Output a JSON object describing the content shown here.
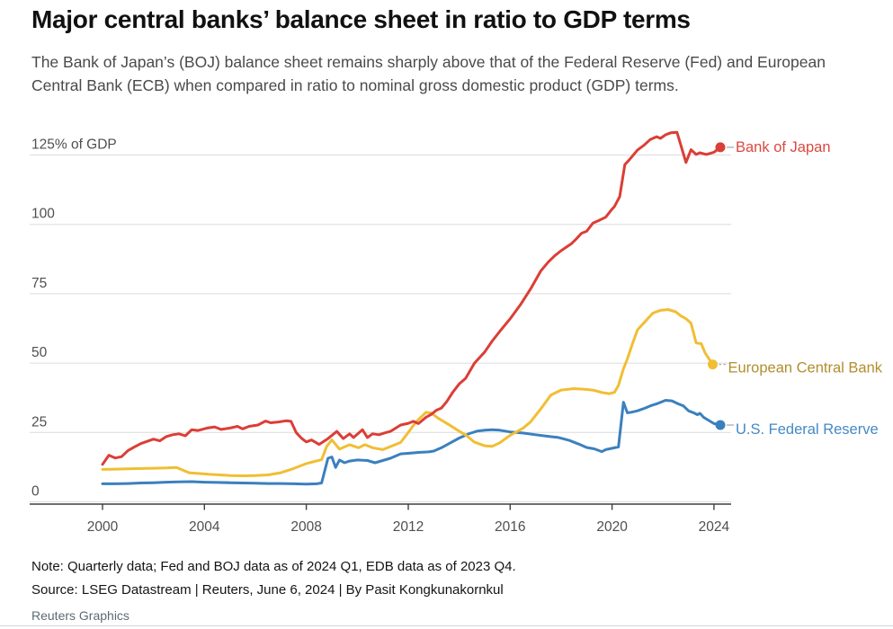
{
  "chart_data": {
    "type": "line",
    "title": "Major central banks’ balance sheet in ratio to GDP terms",
    "subtitle": "The Bank of Japan’s (BOJ) balance sheet remains sharply above that of the Federal Reserve (Fed) and European Central Bank (ECB) when compared in ratio to nominal gross domestic product (GDP) terms.",
    "unit": "% of GDP",
    "grid": true,
    "legend_position": "right-of-line-ends",
    "ylim": [
      0,
      138
    ],
    "x_range": [
      1999.6,
      2024.8
    ],
    "y_ticks": [
      0,
      25,
      50,
      75,
      100,
      125
    ],
    "y_tick_labels": [
      "0",
      "25",
      "50",
      "75",
      "100",
      "125% of GDP"
    ],
    "x_ticks": [
      2000,
      2004,
      2008,
      2012,
      2016,
      2020,
      2024
    ],
    "series": [
      {
        "name": "U.S. Federal Reserve",
        "color": "#3B80BE",
        "label_color": "#4489C5",
        "points": [
          [
            2000,
            6.5
          ],
          [
            2000.5,
            6.5
          ],
          [
            2001,
            6.6
          ],
          [
            2001.5,
            6.8
          ],
          [
            2002,
            6.9
          ],
          [
            2002.5,
            7.1
          ],
          [
            2003,
            7.2
          ],
          [
            2003.5,
            7.3
          ],
          [
            2004,
            7.1
          ],
          [
            2004.5,
            7.0
          ],
          [
            2005,
            6.9
          ],
          [
            2005.5,
            6.8
          ],
          [
            2006,
            6.7
          ],
          [
            2006.5,
            6.6
          ],
          [
            2007,
            6.6
          ],
          [
            2007.5,
            6.5
          ],
          [
            2008,
            6.4
          ],
          [
            2008.4,
            6.5
          ],
          [
            2008.6,
            6.8
          ],
          [
            2008.85,
            15.7
          ],
          [
            2009,
            16.2
          ],
          [
            2009.15,
            12.4
          ],
          [
            2009.3,
            15.1
          ],
          [
            2009.5,
            14.1
          ],
          [
            2009.7,
            14.7
          ],
          [
            2010,
            15.1
          ],
          [
            2010.4,
            14.9
          ],
          [
            2010.7,
            14.1
          ],
          [
            2011,
            14.9
          ],
          [
            2011.3,
            15.7
          ],
          [
            2011.7,
            17.3
          ],
          [
            2012.1,
            17.6
          ],
          [
            2012.4,
            17.8
          ],
          [
            2012.8,
            18.0
          ],
          [
            2013,
            18.3
          ],
          [
            2013.3,
            19.5
          ],
          [
            2013.6,
            21.0
          ],
          [
            2014,
            23.0
          ],
          [
            2014.4,
            24.6
          ],
          [
            2014.7,
            25.5
          ],
          [
            2015,
            25.8
          ],
          [
            2015.3,
            26.0
          ],
          [
            2015.6,
            25.8
          ],
          [
            2016,
            25.2
          ],
          [
            2016.5,
            24.8
          ],
          [
            2017,
            24.2
          ],
          [
            2017.5,
            23.6
          ],
          [
            2017.9,
            23.2
          ],
          [
            2018.3,
            22.2
          ],
          [
            2018.7,
            20.8
          ],
          [
            2019,
            19.6
          ],
          [
            2019.3,
            19.1
          ],
          [
            2019.6,
            18.1
          ],
          [
            2019.75,
            18.8
          ],
          [
            2020,
            19.3
          ],
          [
            2020.25,
            19.8
          ],
          [
            2020.45,
            35.9
          ],
          [
            2020.6,
            32.1
          ],
          [
            2020.75,
            32.3
          ],
          [
            2021,
            32.8
          ],
          [
            2021.3,
            33.8
          ],
          [
            2021.5,
            34.6
          ],
          [
            2021.8,
            35.5
          ],
          [
            2022.1,
            36.6
          ],
          [
            2022.35,
            36.4
          ],
          [
            2022.6,
            35.3
          ],
          [
            2022.8,
            34.6
          ],
          [
            2023,
            32.8
          ],
          [
            2023.2,
            32.1
          ],
          [
            2023.35,
            31.4
          ],
          [
            2023.45,
            31.9
          ],
          [
            2023.6,
            30.4
          ],
          [
            2023.8,
            29.3
          ],
          [
            2024,
            28.2
          ],
          [
            2024.25,
            27.7
          ]
        ]
      },
      {
        "name": "European Central Bank",
        "color": "#F1BE33",
        "label_color": "#B28E2D",
        "points": [
          [
            2000,
            11.7
          ],
          [
            2000.5,
            11.8
          ],
          [
            2001,
            11.9
          ],
          [
            2001.5,
            12.0
          ],
          [
            2002,
            12.1
          ],
          [
            2002.5,
            12.2
          ],
          [
            2002.9,
            12.4
          ],
          [
            2003.4,
            10.5
          ],
          [
            2003.8,
            10.2
          ],
          [
            2004.2,
            9.9
          ],
          [
            2004.6,
            9.7
          ],
          [
            2005,
            9.5
          ],
          [
            2005.5,
            9.4
          ],
          [
            2006,
            9.5
          ],
          [
            2006.5,
            9.7
          ],
          [
            2007,
            10.5
          ],
          [
            2007.5,
            12.0
          ],
          [
            2008,
            13.8
          ],
          [
            2008.3,
            14.5
          ],
          [
            2008.6,
            15.2
          ],
          [
            2008.8,
            20.0
          ],
          [
            2009,
            22.3
          ],
          [
            2009.3,
            19.0
          ],
          [
            2009.7,
            20.6
          ],
          [
            2010.05,
            19.5
          ],
          [
            2010.3,
            20.6
          ],
          [
            2010.6,
            19.5
          ],
          [
            2011,
            18.8
          ],
          [
            2011.3,
            19.9
          ],
          [
            2011.7,
            21.4
          ],
          [
            2012,
            25.0
          ],
          [
            2012.3,
            28.8
          ],
          [
            2012.7,
            32.3
          ],
          [
            2012.9,
            32.0
          ],
          [
            2013.2,
            30.0
          ],
          [
            2013.6,
            27.8
          ],
          [
            2014,
            25.5
          ],
          [
            2014.3,
            23.8
          ],
          [
            2014.6,
            21.5
          ],
          [
            2015,
            20.2
          ],
          [
            2015.3,
            20.0
          ],
          [
            2015.6,
            21.3
          ],
          [
            2016,
            24.0
          ],
          [
            2016.5,
            26.5
          ],
          [
            2016.8,
            28.8
          ],
          [
            2017.2,
            33.5
          ],
          [
            2017.6,
            38.5
          ],
          [
            2018,
            40.3
          ],
          [
            2018.5,
            40.8
          ],
          [
            2019,
            40.5
          ],
          [
            2019.3,
            40.2
          ],
          [
            2019.6,
            39.4
          ],
          [
            2019.9,
            39.0
          ],
          [
            2020.1,
            39.5
          ],
          [
            2020.25,
            42.0
          ],
          [
            2020.45,
            48.0
          ],
          [
            2020.6,
            51.5
          ],
          [
            2020.8,
            57.0
          ],
          [
            2021,
            62.0
          ],
          [
            2021.3,
            65.0
          ],
          [
            2021.6,
            68.0
          ],
          [
            2021.9,
            69.0
          ],
          [
            2022.2,
            69.3
          ],
          [
            2022.5,
            68.5
          ],
          [
            2022.7,
            67.0
          ],
          [
            2022.9,
            66.0
          ],
          [
            2023.1,
            64.4
          ],
          [
            2023.3,
            57.3
          ],
          [
            2023.5,
            57.0
          ],
          [
            2023.65,
            53.7
          ],
          [
            2023.95,
            49.5
          ]
        ]
      },
      {
        "name": "Bank of Japan",
        "color": "#DB3E36",
        "label_color": "#DC4841",
        "points": [
          [
            2000,
            13.5
          ],
          [
            2000.25,
            16.8
          ],
          [
            2000.5,
            15.8
          ],
          [
            2000.75,
            16.3
          ],
          [
            2001,
            18.5
          ],
          [
            2001.25,
            19.8
          ],
          [
            2001.5,
            21.0
          ],
          [
            2001.75,
            21.8
          ],
          [
            2002,
            22.6
          ],
          [
            2002.25,
            22.0
          ],
          [
            2002.5,
            23.5
          ],
          [
            2002.75,
            24.2
          ],
          [
            2003,
            24.5
          ],
          [
            2003.25,
            23.8
          ],
          [
            2003.5,
            26.0
          ],
          [
            2003.75,
            25.7
          ],
          [
            2004.1,
            26.6
          ],
          [
            2004.4,
            27.0
          ],
          [
            2004.65,
            26.1
          ],
          [
            2005,
            26.6
          ],
          [
            2005.3,
            27.2
          ],
          [
            2005.5,
            26.3
          ],
          [
            2005.75,
            27.2
          ],
          [
            2006.1,
            27.7
          ],
          [
            2006.4,
            29.1
          ],
          [
            2006.6,
            28.5
          ],
          [
            2006.9,
            28.8
          ],
          [
            2007.2,
            29.2
          ],
          [
            2007.4,
            29.0
          ],
          [
            2007.6,
            25.0
          ],
          [
            2007.8,
            23.0
          ],
          [
            2008,
            21.6
          ],
          [
            2008.2,
            22.3
          ],
          [
            2008.5,
            20.7
          ],
          [
            2008.85,
            22.8
          ],
          [
            2009.2,
            25.4
          ],
          [
            2009.45,
            22.8
          ],
          [
            2009.7,
            24.5
          ],
          [
            2009.85,
            23.2
          ],
          [
            2010.2,
            26.0
          ],
          [
            2010.4,
            23.2
          ],
          [
            2010.6,
            24.5
          ],
          [
            2010.85,
            24.2
          ],
          [
            2011.1,
            24.9
          ],
          [
            2011.3,
            25.4
          ],
          [
            2011.7,
            27.7
          ],
          [
            2012,
            28.3
          ],
          [
            2012.2,
            29.0
          ],
          [
            2012.4,
            28.2
          ],
          [
            2012.7,
            30.5
          ],
          [
            2012.9,
            31.5
          ],
          [
            2013.1,
            33.0
          ],
          [
            2013.3,
            33.8
          ],
          [
            2013.5,
            36.0
          ],
          [
            2013.75,
            39.5
          ],
          [
            2014,
            42.5
          ],
          [
            2014.25,
            44.5
          ],
          [
            2014.6,
            50.0
          ],
          [
            2015,
            54.0
          ],
          [
            2015.3,
            58.0
          ],
          [
            2015.6,
            61.5
          ],
          [
            2016,
            66.0
          ],
          [
            2016.4,
            71.0
          ],
          [
            2016.8,
            76.7
          ],
          [
            2017.2,
            83.2
          ],
          [
            2017.5,
            86.5
          ],
          [
            2017.75,
            88.7
          ],
          [
            2018,
            90.5
          ],
          [
            2018.4,
            93.0
          ],
          [
            2018.6,
            94.8
          ],
          [
            2018.8,
            96.8
          ],
          [
            2019,
            97.5
          ],
          [
            2019.25,
            100.5
          ],
          [
            2019.5,
            101.5
          ],
          [
            2019.75,
            102.6
          ],
          [
            2020,
            105.5
          ],
          [
            2020.1,
            106.5
          ],
          [
            2020.3,
            110.0
          ],
          [
            2020.5,
            121.5
          ],
          [
            2020.7,
            123.5
          ],
          [
            2021,
            126.8
          ],
          [
            2021.25,
            128.5
          ],
          [
            2021.5,
            130.6
          ],
          [
            2021.75,
            131.6
          ],
          [
            2021.9,
            131.0
          ],
          [
            2022.1,
            132.3
          ],
          [
            2022.3,
            133.0
          ],
          [
            2022.55,
            133.2
          ],
          [
            2022.9,
            122.3
          ],
          [
            2023.1,
            126.9
          ],
          [
            2023.3,
            125.2
          ],
          [
            2023.45,
            125.8
          ],
          [
            2023.7,
            125.2
          ],
          [
            2024,
            126.0
          ],
          [
            2024.25,
            127.8
          ]
        ]
      }
    ]
  },
  "footer": {
    "note": "Note: Quarterly data; Fed and BOJ data as of 2024 Q1, EDB data as of 2023 Q4.",
    "source": "Source: LSEG Datastream | Reuters, June 6, 2024 | By Pasit Kongkunakornkul",
    "credit": "Reuters Graphics"
  }
}
